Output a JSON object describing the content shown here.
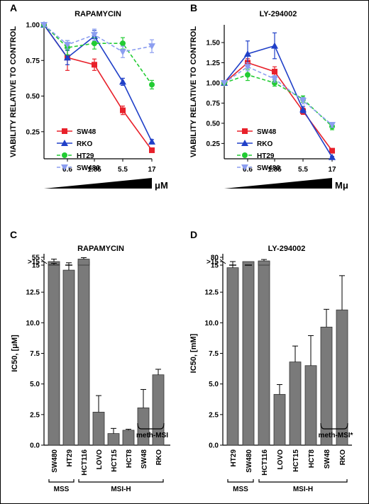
{
  "chart_data": [
    {
      "panel": "A",
      "type": "line",
      "title": "RAPAMYCIN",
      "ylabel": "VIABILITY RELATIVE TO CONTROL",
      "unit": "μM",
      "x_ticks": [
        "0.6",
        "1.85",
        "5.5",
        "17"
      ],
      "y_ticks": [
        "0.25",
        "0.50",
        "0.75",
        "1.00"
      ],
      "ylim": [
        0.06,
        1.0
      ],
      "series": [
        {
          "name": "SW48",
          "color": "#e8202a",
          "marker": "square",
          "dash": false,
          "values": [
            1.0,
            0.77,
            0.72,
            0.4,
            0.12
          ],
          "err": [
            0,
            0.09,
            0.04,
            0.03,
            0.015
          ]
        },
        {
          "name": "RKO",
          "color": "#2040c8",
          "marker": "triangle",
          "dash": false,
          "values": [
            1.0,
            0.77,
            0.92,
            0.6,
            0.18
          ],
          "err": [
            0,
            0.05,
            0.04,
            0.025,
            0.015
          ]
        },
        {
          "name": "HT29",
          "color": "#22cc33",
          "marker": "circle",
          "dash": true,
          "values": [
            1.0,
            0.84,
            0.87,
            0.87,
            0.58
          ],
          "err": [
            0,
            0.05,
            0.04,
            0.04,
            0.03
          ]
        },
        {
          "name": "SW480",
          "color": "#8c9ef0",
          "marker": "triangle-down",
          "dash": true,
          "values": [
            1.0,
            0.86,
            0.93,
            0.81,
            0.85
          ],
          "err": [
            0,
            0.03,
            0.04,
            0.04,
            0.045
          ]
        }
      ]
    },
    {
      "panel": "B",
      "type": "line",
      "title": "LY-294002",
      "ylabel": "VIABILITY RELATIVE TO CONTROL",
      "unit": "Mμ",
      "x_ticks": [
        "0.6",
        "1.85",
        "5.5",
        "17"
      ],
      "y_ticks": [
        "0.25",
        "0.50",
        "0.75",
        "1.00",
        "1.25",
        "1.50"
      ],
      "ylim": [
        0.06,
        1.72
      ],
      "series": [
        {
          "name": "SW48",
          "color": "#e8202a",
          "marker": "square",
          "dash": false,
          "values": [
            1.0,
            1.25,
            1.14,
            0.65,
            0.16
          ],
          "err": [
            0,
            0.05,
            0.06,
            0.04,
            0.01
          ]
        },
        {
          "name": "RKO",
          "color": "#2040c8",
          "marker": "triangle",
          "dash": false,
          "values": [
            1.0,
            1.36,
            1.46,
            0.67,
            0.08
          ],
          "err": [
            0,
            0.16,
            0.16,
            0.04,
            0.01
          ]
        },
        {
          "name": "HT29",
          "color": "#22cc33",
          "marker": "circle",
          "dash": true,
          "values": [
            1.0,
            1.1,
            1.0,
            0.8,
            0.46
          ],
          "err": [
            0,
            0.07,
            0.04,
            0.04,
            0.04
          ]
        },
        {
          "name": "SW480",
          "color": "#8c9ef0",
          "marker": "triangle-down",
          "dash": true,
          "values": [
            1.0,
            1.2,
            1.05,
            0.78,
            0.48
          ],
          "err": [
            0,
            0.05,
            0.04,
            0.04,
            0.03
          ]
        }
      ]
    },
    {
      "panel": "C",
      "type": "bar",
      "title": "RAPAMYCIN",
      "ylabel": "IC50, [μM]",
      "categories": [
        "SW480",
        "HT29",
        "HCT116",
        "LOVO",
        "HCT15",
        "HCT8",
        "SW48",
        "RKO"
      ],
      "values": [
        15,
        14.3,
        15,
        2.7,
        0.95,
        1.22,
        3.05,
        5.75
      ],
      "err": [
        0.6,
        0.6,
        0,
        1.35,
        0.42,
        0.08,
        1.5,
        0.45
      ],
      "upper_values": [
        17,
        0,
        46
      ],
      "y_ticks": [
        "0.0",
        "2.5",
        "5.0",
        "7.5",
        "10.0",
        "12.5",
        ">15"
      ],
      "break_ticks": [
        "15",
        "55"
      ],
      "ylim": [
        0,
        15
      ],
      "groups": [
        {
          "label": "MSS",
          "members": [
            "SW480",
            "HT29"
          ]
        },
        {
          "label": "MSI-H",
          "members": [
            "HCT116",
            "LOVO",
            "HCT15",
            "HCT8",
            "SW48",
            "RKO"
          ]
        },
        {
          "label": "meth-MSI",
          "members": [
            "SW48",
            "RKO"
          ]
        }
      ]
    },
    {
      "panel": "D",
      "type": "bar",
      "title": "LY-294002",
      "ylabel": "IC50, [mM]",
      "categories": [
        "HT29",
        "SW480",
        "HCT116",
        "LOVO",
        "HCT15",
        "HCT8",
        "SW48",
        "RKO"
      ],
      "values": [
        14.5,
        15,
        15,
        4.15,
        6.8,
        6.5,
        9.65,
        11.05
      ],
      "err": [
        0.5,
        0,
        0,
        0.8,
        1.3,
        2.45,
        1.45,
        2.8
      ],
      "upper_values": [
        0,
        0,
        50
      ],
      "y_ticks": [
        "0.0",
        "2.5",
        "5.0",
        "7.5",
        "10.0",
        "12.5",
        ">15"
      ],
      "break_ticks": [
        "15",
        "80"
      ],
      "ylim": [
        0,
        15
      ],
      "groups": [
        {
          "label": "MSS",
          "members": [
            "HT29",
            "SW480"
          ]
        },
        {
          "label": "MSI-H",
          "members": [
            "HCT116",
            "LOVO",
            "HCT15",
            "HCT8",
            "SW48",
            "RKO"
          ]
        },
        {
          "label": "meth-MSI*",
          "members": [
            "SW48",
            "RKO"
          ]
        }
      ]
    }
  ]
}
